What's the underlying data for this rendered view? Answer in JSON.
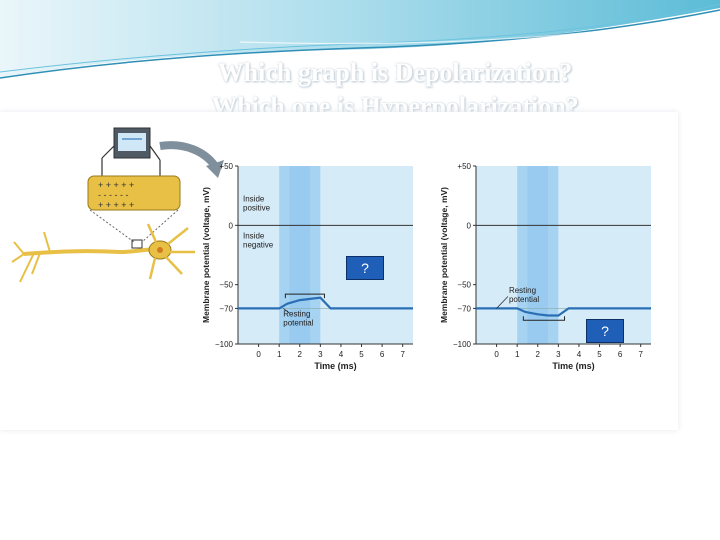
{
  "slide": {
    "title_line1": "Which graph is Depolarization?",
    "title_line2": "Which one is Hyperpolarization?"
  },
  "colors": {
    "header_waves": "#3fb0cf",
    "plot_background": "#d6ebf8",
    "stimulus_band": "#a7d3f2",
    "trace": "#2a6fb5",
    "question_box": "#1f5fb8"
  },
  "graphs": [
    {
      "y_axis_label": "Membrane potential (voltage, mV)",
      "x_axis_label": "Time (ms)",
      "y_ticks": [
        "+50",
        "0",
        "−50",
        "−70",
        "−100"
      ],
      "x_ticks": [
        "0",
        "1",
        "2",
        "3",
        "4",
        "5",
        "6",
        "7"
      ],
      "label_inside_positive": "Inside\npositive",
      "label_inside_negative": "Inside\nnegative",
      "label_resting": "Resting\npotential",
      "question_label": "?"
    },
    {
      "y_axis_label": "Membrane potential (voltage, mV)",
      "x_axis_label": "Time (ms)",
      "y_ticks": [
        "+50",
        "0",
        "−50",
        "−70",
        "−100"
      ],
      "x_ticks": [
        "0",
        "1",
        "2",
        "3",
        "4",
        "5",
        "6",
        "7"
      ],
      "label_resting": "Resting\npotential",
      "question_label": "?"
    }
  ],
  "chart_data": [
    {
      "type": "line",
      "title": "",
      "xlabel": "Time (ms)",
      "ylabel": "Membrane potential (voltage, mV)",
      "xlim": [
        -1,
        7.5
      ],
      "ylim": [
        -100,
        50
      ],
      "series": [
        {
          "x": [
            -1,
            1,
            1.4,
            2,
            2.5,
            3,
            3.5,
            4,
            7.5
          ],
          "y": [
            -70,
            -70,
            -66,
            -63,
            -62,
            -61,
            -70,
            -70,
            -70
          ]
        }
      ]
    },
    {
      "type": "line",
      "title": "",
      "xlabel": "Time (ms)",
      "ylabel": "Membrane potential (voltage, mV)",
      "xlim": [
        -1,
        7.5
      ],
      "ylim": [
        -100,
        50
      ],
      "series": [
        {
          "x": [
            -1,
            1,
            1.4,
            2,
            2.5,
            3,
            3.5,
            4,
            7.5
          ],
          "y": [
            -70,
            -70,
            -73,
            -75,
            -76,
            -76,
            -70,
            -70,
            -70
          ]
        }
      ]
    }
  ]
}
